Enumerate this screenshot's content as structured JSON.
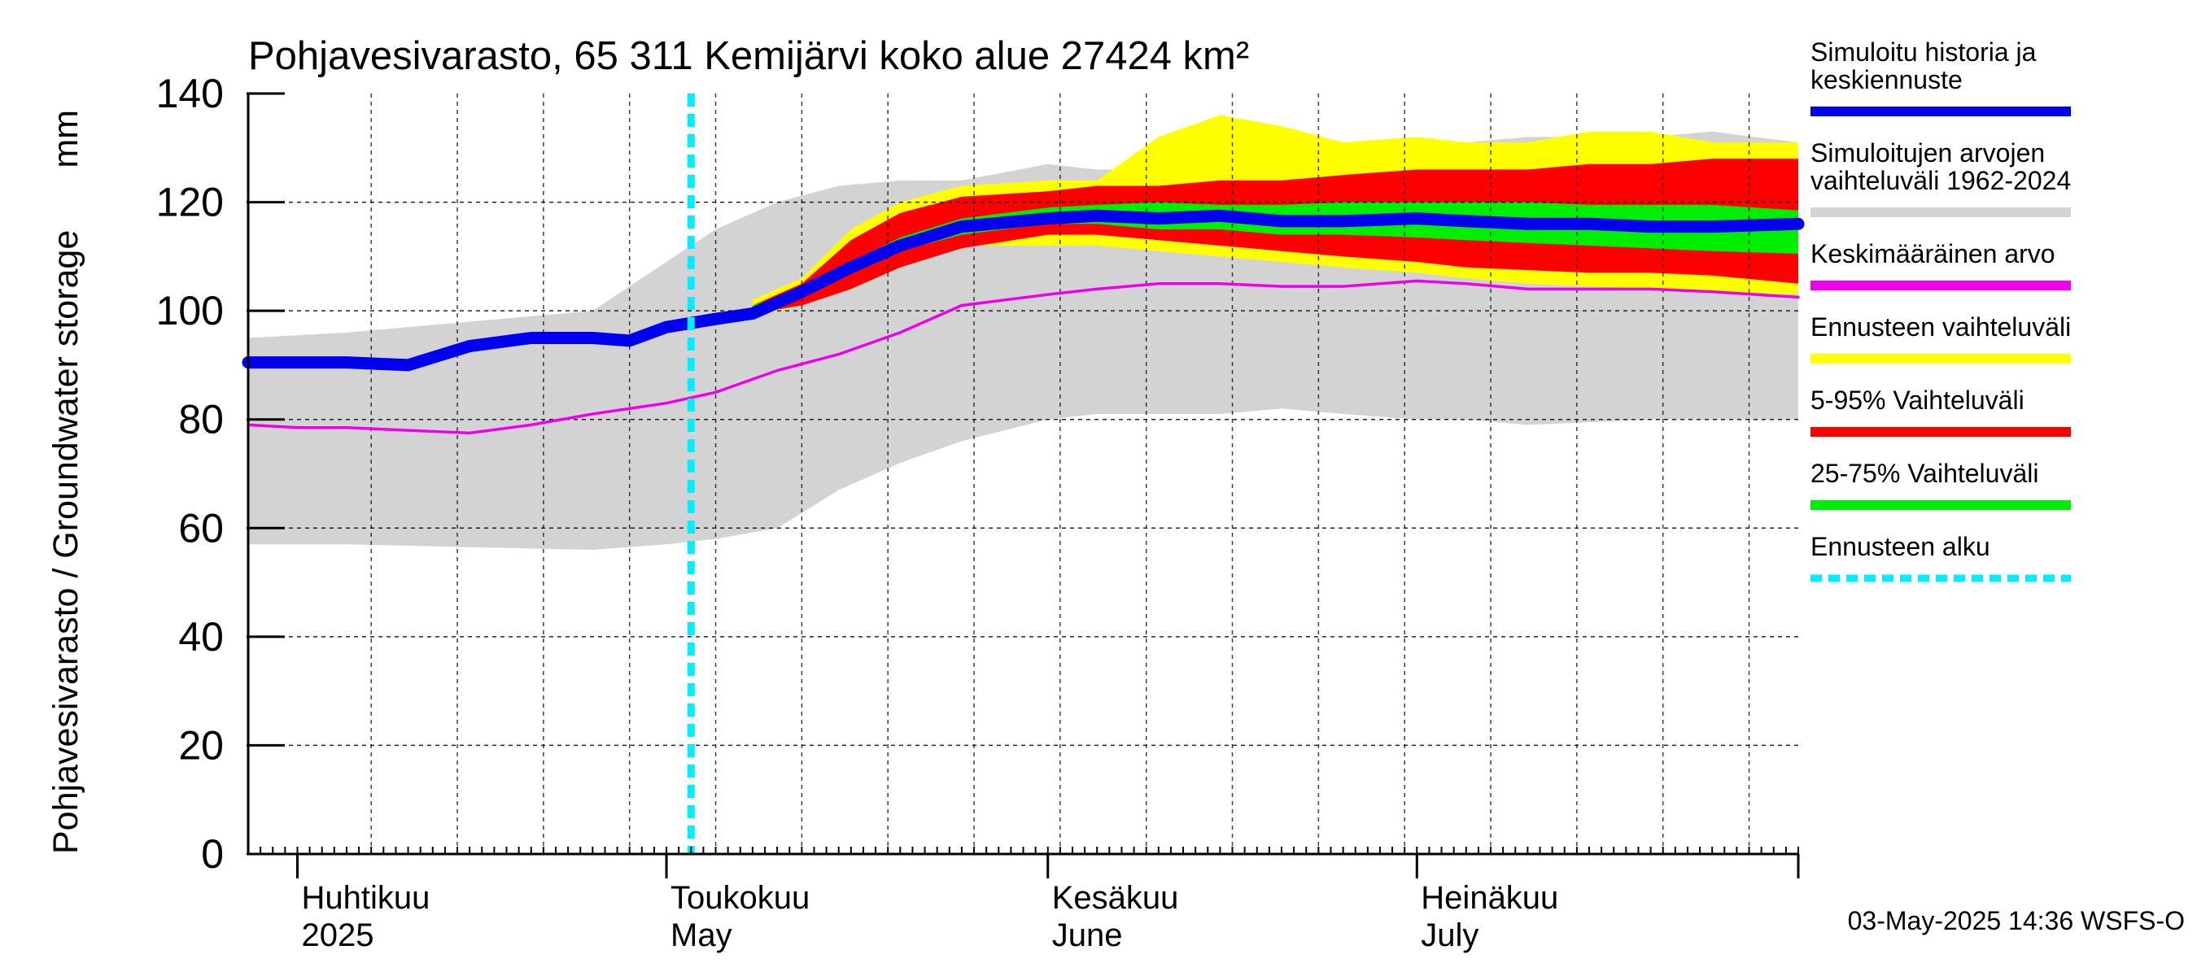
{
  "chart_data": {
    "type": "area",
    "title": "Pohjavesivarasto, 65 311 Kemijärvi koko alue 27424 km²",
    "ylabel": "Pohjavesivarasto / Groundwater storage",
    "yunit": "mm",
    "ylim": [
      0,
      140
    ],
    "yticks": [
      "0",
      "20",
      "40",
      "60",
      "80",
      "100",
      "120",
      "140"
    ],
    "x_start": "2025-03-28",
    "x_end": "2025-08-01",
    "forecast_start": "2025-05-03",
    "grid": true,
    "legend_position": "right",
    "month_labels": [
      {
        "date": "2025-04-01",
        "fi": "Huhtikuu",
        "en": "2025"
      },
      {
        "date": "2025-05-01",
        "fi": "Toukokuu",
        "en": "May"
      },
      {
        "date": "2025-06-01",
        "fi": "Kesäkuu",
        "en": "June"
      },
      {
        "date": "2025-07-01",
        "fi": "Heinäkuu",
        "en": "July"
      }
    ],
    "legend": [
      {
        "label": "Simuloitu historia ja keskiennuste",
        "lines": [
          "Simuloitu historia ja",
          "keskiennuste"
        ],
        "color": "#0000ee",
        "style": "line"
      },
      {
        "label": "Simuloitujen arvojen vaihteluväli 1962-2024",
        "lines": [
          "Simuloitujen arvojen",
          "vaihteluväli 1962-2024"
        ],
        "color": "#d3d3d3",
        "style": "line"
      },
      {
        "label": "Keskimääräinen arvo",
        "lines": [
          "Keskimääräinen arvo"
        ],
        "color": "#ee00ee",
        "style": "line"
      },
      {
        "label": "Ennusteen vaihteluväli",
        "lines": [
          "Ennusteen vaihteluväli"
        ],
        "color": "#ffff00",
        "style": "line"
      },
      {
        "label": "5-95% Vaihteluväli",
        "lines": [
          "5-95% Vaihteluväli"
        ],
        "color": "#ff0000",
        "style": "line"
      },
      {
        "label": "25-75% Vaihteluväli",
        "lines": [
          "25-75% Vaihteluväli"
        ],
        "color": "#00ee00",
        "style": "line"
      },
      {
        "label": "Ennusteen alku",
        "lines": [
          "Ennusteen alku"
        ],
        "color": "#00eeff",
        "style": "dotted"
      }
    ],
    "series": [
      {
        "name": "Simuloitujen arvojen vaihteluväli 1962-2024",
        "kind": "band",
        "color": "#d3d3d3",
        "x": [
          "2025-03-28",
          "2025-04-05",
          "2025-04-15",
          "2025-04-25",
          "2025-05-01",
          "2025-05-05",
          "2025-05-10",
          "2025-05-15",
          "2025-05-20",
          "2025-05-25",
          "2025-06-01",
          "2025-06-05",
          "2025-06-10",
          "2025-06-15",
          "2025-06-20",
          "2025-06-25",
          "2025-07-01",
          "2025-07-05",
          "2025-07-10",
          "2025-07-15",
          "2025-07-20",
          "2025-07-25",
          "2025-08-01"
        ],
        "low": [
          57,
          57,
          56.5,
          56,
          57,
          58,
          60,
          67,
          72,
          76,
          80,
          81,
          81,
          81,
          82,
          81,
          80,
          80,
          79,
          79.5,
          80,
          80,
          80
        ],
        "high": [
          95,
          96,
          98,
          100,
          109,
          115,
          120,
          123,
          124,
          124,
          127,
          126,
          126,
          128,
          131,
          131,
          131,
          131,
          132,
          132,
          132,
          133,
          131
        ]
      },
      {
        "name": "Ennusteen vaihteluväli",
        "kind": "band",
        "color": "#ffff00",
        "x": [
          "2025-05-08",
          "2025-05-12",
          "2025-05-16",
          "2025-05-20",
          "2025-05-25",
          "2025-06-01",
          "2025-06-05",
          "2025-06-10",
          "2025-06-15",
          "2025-06-20",
          "2025-06-25",
          "2025-07-01",
          "2025-07-05",
          "2025-07-10",
          "2025-07-15",
          "2025-07-20",
          "2025-07-25",
          "2025-08-01"
        ],
        "low": [
          99,
          101,
          104,
          108,
          112,
          112,
          112,
          111,
          110,
          109,
          108,
          107,
          106,
          105,
          104.5,
          104,
          103.5,
          103
        ],
        "high": [
          102,
          106,
          115,
          120,
          123,
          124,
          124,
          132,
          136,
          134,
          131,
          132,
          131,
          131,
          133,
          133,
          131,
          131
        ]
      },
      {
        "name": "5-95% Vaihteluväli",
        "kind": "band",
        "color": "#ff0000",
        "x": [
          "2025-05-08",
          "2025-05-12",
          "2025-05-16",
          "2025-05-20",
          "2025-05-25",
          "2025-06-01",
          "2025-06-05",
          "2025-06-10",
          "2025-06-15",
          "2025-06-20",
          "2025-06-25",
          "2025-07-01",
          "2025-07-05",
          "2025-07-10",
          "2025-07-15",
          "2025-07-20",
          "2025-07-25",
          "2025-08-01"
        ],
        "low": [
          99.5,
          101,
          104,
          108,
          111.5,
          114,
          114,
          113,
          112,
          111,
          110,
          109,
          108,
          107.5,
          107,
          107,
          106.5,
          105
        ],
        "high": [
          101,
          105,
          113,
          118,
          121,
          122,
          123,
          123,
          124,
          124,
          125,
          126,
          126,
          126,
          127,
          127,
          128,
          128
        ]
      },
      {
        "name": "25-75% Vaihteluväli",
        "kind": "band",
        "color": "#00ee00",
        "x": [
          "2025-05-08",
          "2025-05-12",
          "2025-05-16",
          "2025-05-20",
          "2025-05-25",
          "2025-06-01",
          "2025-06-05",
          "2025-06-10",
          "2025-06-15",
          "2025-06-20",
          "2025-06-25",
          "2025-07-01",
          "2025-07-05",
          "2025-07-10",
          "2025-07-15",
          "2025-07-20",
          "2025-07-25",
          "2025-08-01"
        ],
        "low": [
          100,
          102.5,
          107,
          111,
          114,
          116,
          116,
          115,
          115,
          114,
          114,
          113.5,
          113,
          112.5,
          112,
          111.5,
          111,
          110.5
        ],
        "high": [
          101,
          104,
          109,
          113.5,
          117,
          119,
          119.5,
          120,
          119.5,
          119.5,
          120,
          120,
          120,
          120,
          119.5,
          119.5,
          119.5,
          118.5
        ]
      },
      {
        "name": "Keskimääräinen arvo",
        "kind": "line",
        "color": "#ee00ee",
        "x": [
          "2025-03-28",
          "2025-04-01",
          "2025-04-05",
          "2025-04-10",
          "2025-04-15",
          "2025-04-20",
          "2025-04-25",
          "2025-05-01",
          "2025-05-05",
          "2025-05-10",
          "2025-05-15",
          "2025-05-20",
          "2025-05-25",
          "2025-06-01",
          "2025-06-05",
          "2025-06-10",
          "2025-06-15",
          "2025-06-20",
          "2025-06-25",
          "2025-07-01",
          "2025-07-05",
          "2025-07-10",
          "2025-07-15",
          "2025-07-20",
          "2025-07-25",
          "2025-08-01"
        ],
        "values": [
          79,
          78.5,
          78.5,
          78,
          77.5,
          79,
          81,
          83,
          85,
          89,
          92,
          96,
          101,
          103,
          104,
          105,
          105,
          104.5,
          104.5,
          105.5,
          105,
          104,
          104,
          104,
          103.5,
          102.5
        ]
      },
      {
        "name": "Simuloitu historia ja keskiennuste",
        "kind": "line",
        "color": "#0000ee",
        "x": [
          "2025-03-28",
          "2025-04-01",
          "2025-04-05",
          "2025-04-10",
          "2025-04-15",
          "2025-04-20",
          "2025-04-25",
          "2025-04-28",
          "2025-05-01",
          "2025-05-05",
          "2025-05-08",
          "2025-05-12",
          "2025-05-16",
          "2025-05-20",
          "2025-05-25",
          "2025-06-01",
          "2025-06-05",
          "2025-06-10",
          "2025-06-15",
          "2025-06-20",
          "2025-06-25",
          "2025-07-01",
          "2025-07-05",
          "2025-07-10",
          "2025-07-15",
          "2025-07-20",
          "2025-07-25",
          "2025-08-01"
        ],
        "values": [
          90.5,
          90.5,
          90.5,
          90,
          93.5,
          95,
          95,
          94.5,
          97,
          98.5,
          99.5,
          103.5,
          108,
          112,
          115.5,
          117,
          117.5,
          117,
          117.5,
          116.5,
          116.5,
          117,
          116.5,
          116,
          116,
          115.5,
          115.5,
          116
        ]
      }
    ]
  },
  "footer_timestamp": "03-May-2025 14:36 WSFS-O"
}
